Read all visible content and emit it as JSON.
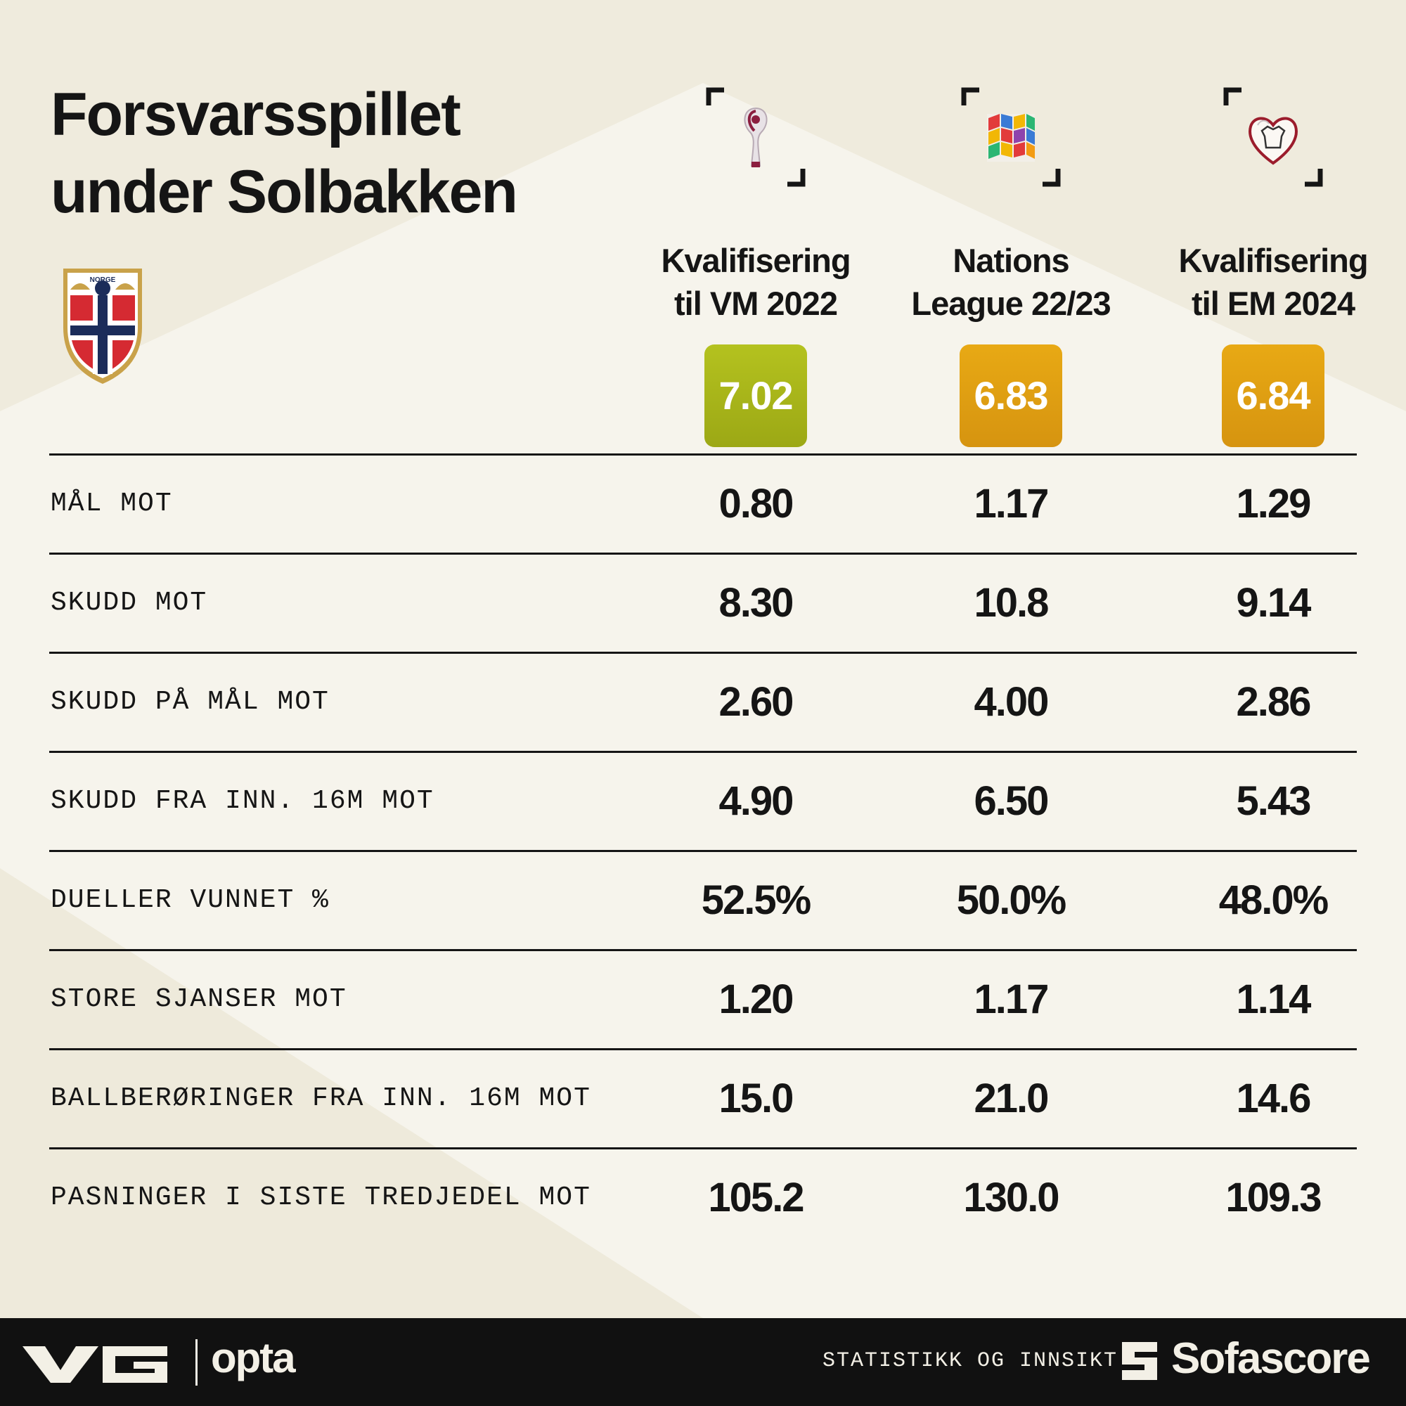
{
  "header": {
    "title_line1": "Forsvarsspillet",
    "title_line2": "under Solbakken"
  },
  "crest": {
    "text": "NORGE",
    "colors": {
      "red": "#d52a32",
      "blue": "#1b2c5a",
      "gold": "#c9a24a",
      "white": "#ffffff"
    }
  },
  "chart_data": {
    "type": "table",
    "competitions": [
      {
        "name_line1": "Kvalifisering",
        "name_line2": "til VM 2022",
        "rating": "7.02",
        "rating_color": "#a7b51c",
        "logo": "world-cup-trophy-icon"
      },
      {
        "name_line1": "Nations",
        "name_line2": "League 22/23",
        "rating": "6.83",
        "rating_color": "#e1a012",
        "logo": "nations-league-icon"
      },
      {
        "name_line1": "Kvalifisering",
        "name_line2": "til EM 2024",
        "rating": "6.84",
        "rating_color": "#e1a012",
        "logo": "euro-qualifying-icon"
      }
    ],
    "rows": [
      {
        "label": "MÅL MOT",
        "values": [
          "0.80",
          "1.17",
          "1.29"
        ]
      },
      {
        "label": "SKUDD MOT",
        "values": [
          "8.30",
          "10.8",
          "9.14"
        ]
      },
      {
        "label": "SKUDD PÅ MÅL MOT",
        "values": [
          "2.60",
          "4.00",
          "2.86"
        ]
      },
      {
        "label": "SKUDD FRA INN. 16M MOT",
        "values": [
          "4.90",
          "6.50",
          "5.43"
        ]
      },
      {
        "label": "DUELLER VUNNET %",
        "values": [
          "52.5%",
          "50.0%",
          "48.0%"
        ]
      },
      {
        "label": "STORE SJANSER MOT",
        "values": [
          "1.20",
          "1.17",
          "1.14"
        ]
      },
      {
        "label": "BALLBERØRINGER FRA INN. 16M MOT",
        "values": [
          "15.0",
          "21.0",
          "14.6"
        ]
      },
      {
        "label": "PASNINGER I SISTE TREDJEDEL MOT",
        "values": [
          "105.2",
          "130.0",
          "109.3"
        ]
      }
    ]
  },
  "footer": {
    "vg_logo": "vg-logo-icon",
    "opta": "opta",
    "statistikk": "STATISTIKK OG INNSIKT",
    "sofascore": "Sofascore",
    "sofascore_icon": "sofascore-icon"
  },
  "colors": {
    "background": "#efebdd",
    "panel": "#f6f4ec",
    "text": "#151515",
    "footer": "#111111"
  }
}
